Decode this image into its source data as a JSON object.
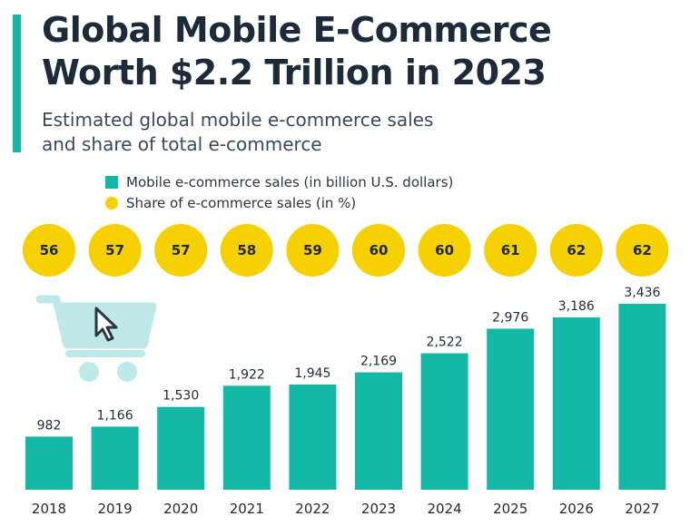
{
  "header": {
    "title_line1": "Global Mobile E-Commerce",
    "title_line2": "Worth $2.2 Trillion in 2023",
    "subtitle_line1": "Estimated global mobile e-commerce sales",
    "subtitle_line2": "and share of total e-commerce"
  },
  "legend": {
    "bars_label": "Mobile e-commerce sales (in billion U.S. dollars)",
    "dots_label": "Share of e-commerce sales (in %)"
  },
  "colors": {
    "bar": "#14b8a6",
    "dot": "#f7d000",
    "accent": "#14b8a6",
    "cart": "#bfe9e9"
  },
  "icons": [
    "shopping-cart-icon",
    "cursor-icon"
  ],
  "chart_data": {
    "type": "bar",
    "title": "Global Mobile E-Commerce Worth $2.2 Trillion in 2023",
    "subtitle": "Estimated global mobile e-commerce sales and share of total e-commerce",
    "categories": [
      "2018",
      "2019",
      "2020",
      "2021",
      "2022",
      "2023",
      "2024",
      "2025",
      "2026",
      "2027"
    ],
    "series": [
      {
        "name": "Mobile e-commerce sales (in billion U.S. dollars)",
        "values": [
          982,
          1166,
          1530,
          1922,
          1945,
          2169,
          2522,
          2976,
          3186,
          3436
        ],
        "labels": [
          "982",
          "1,166",
          "1,530",
          "1,922",
          "1,945",
          "2,169",
          "2,522",
          "2,976",
          "3,186",
          "3,436"
        ]
      },
      {
        "name": "Share of e-commerce sales (in %)",
        "values": [
          56,
          57,
          57,
          58,
          59,
          60,
          60,
          61,
          62,
          62
        ],
        "labels": [
          "56",
          "57",
          "57",
          "58",
          "59",
          "60",
          "60",
          "61",
          "62",
          "62"
        ]
      }
    ],
    "xlabel": "",
    "ylabel": "",
    "ylim": [
      0,
      3436
    ],
    "grid": false,
    "legend_position": "top"
  }
}
